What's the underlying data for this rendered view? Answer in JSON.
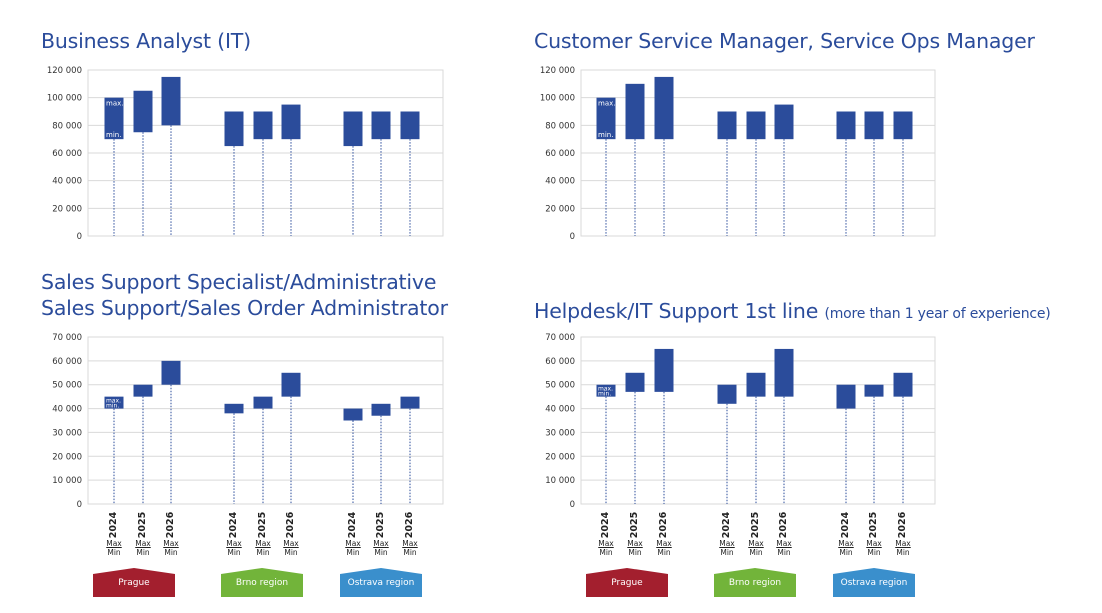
{
  "charts": [
    {
      "title": "Business Analyst (IT)",
      "title_small": ""
    },
    {
      "title": "Customer Service Manager, Service Ops Manager",
      "title_small": ""
    },
    {
      "title_line1": "Sales Support Specialist/Administrative",
      "title_line2": "Sales Support/Sales Order Administrator"
    },
    {
      "title": "Helpdesk/IT Support 1st line",
      "title_small": "(more than 1 year of experience)"
    }
  ],
  "chart_data": [
    {
      "type": "bar",
      "title": "Business Analyst (IT)",
      "ylim": [
        0,
        120000
      ],
      "yticks": [
        "0",
        "20 000",
        "40 000",
        "60 000",
        "80 000",
        "100 000",
        "120 000"
      ],
      "categories": [
        "2024",
        "2025",
        "2026",
        "2024",
        "2025",
        "2026",
        "2024",
        "2025",
        "2026"
      ],
      "groups": [
        "Prague",
        "Brno region",
        "Ostrava region"
      ],
      "min": [
        70000,
        75000,
        80000,
        65000,
        70000,
        70000,
        65000,
        70000,
        70000
      ],
      "max": [
        100000,
        105000,
        115000,
        90000,
        90000,
        95000,
        90000,
        90000,
        90000
      ],
      "bar_labels": {
        "max": "max.",
        "min": "min."
      }
    },
    {
      "type": "bar",
      "title": "Customer Service Manager, Service Ops Manager",
      "ylim": [
        0,
        120000
      ],
      "yticks": [
        "0",
        "20 000",
        "40 000",
        "60 000",
        "80 000",
        "100 000",
        "120 000"
      ],
      "categories": [
        "2024",
        "2025",
        "2026",
        "2024",
        "2025",
        "2026",
        "2024",
        "2025",
        "2026"
      ],
      "groups": [
        "Prague",
        "Brno region",
        "Ostrava region"
      ],
      "min": [
        70000,
        70000,
        70000,
        70000,
        70000,
        70000,
        70000,
        70000,
        70000
      ],
      "max": [
        100000,
        110000,
        115000,
        90000,
        90000,
        95000,
        90000,
        90000,
        90000
      ],
      "bar_labels": {
        "max": "max.",
        "min": "min."
      }
    },
    {
      "type": "bar",
      "title": "Sales Support Specialist/Administrative Sales Support/Sales Order Administrator",
      "ylim": [
        0,
        70000
      ],
      "yticks": [
        "0",
        "10 000",
        "20 000",
        "30 000",
        "40 000",
        "50 000",
        "60 000",
        "70 000"
      ],
      "categories": [
        "2024",
        "2025",
        "2026",
        "2024",
        "2025",
        "2026",
        "2024",
        "2025",
        "2026"
      ],
      "groups": [
        "Prague",
        "Brno region",
        "Ostrava region"
      ],
      "min": [
        40000,
        45000,
        50000,
        38000,
        40000,
        45000,
        35000,
        37000,
        40000
      ],
      "max": [
        45000,
        50000,
        60000,
        42000,
        45000,
        55000,
        40000,
        42000,
        45000
      ],
      "bar_labels": {
        "max": "max.",
        "min": "min."
      }
    },
    {
      "type": "bar",
      "title": "Helpdesk/IT Support 1st line (more than 1 year of experience)",
      "ylim": [
        0,
        70000
      ],
      "yticks": [
        "0",
        "10 000",
        "20 000",
        "30 000",
        "40 000",
        "50 000",
        "60 000",
        "70 000"
      ],
      "categories": [
        "2024",
        "2025",
        "2026",
        "2024",
        "2025",
        "2026",
        "2024",
        "2025",
        "2026"
      ],
      "groups": [
        "Prague",
        "Brno region",
        "Ostrava region"
      ],
      "min": [
        45000,
        47000,
        47000,
        42000,
        45000,
        45000,
        40000,
        45000,
        45000
      ],
      "max": [
        50000,
        55000,
        65000,
        50000,
        55000,
        65000,
        50000,
        50000,
        55000
      ],
      "bar_labels": {
        "max": "max.",
        "min": "min."
      }
    }
  ],
  "xaxis": {
    "years": [
      "2024",
      "2025",
      "2026",
      "2024",
      "2025",
      "2026",
      "2024",
      "2025",
      "2026"
    ],
    "max_label": "Max",
    "min_label": "Min"
  },
  "regions": [
    {
      "label": "Prague",
      "color": "#a31f2e"
    },
    {
      "label": "Brno region",
      "color": "#72b43a"
    },
    {
      "label": "Ostrava region",
      "color": "#3a8fcc"
    }
  ],
  "colors": {
    "bar": "#2b4c9b",
    "grid": "#d9d9d9",
    "title": "#2b4c9b"
  }
}
